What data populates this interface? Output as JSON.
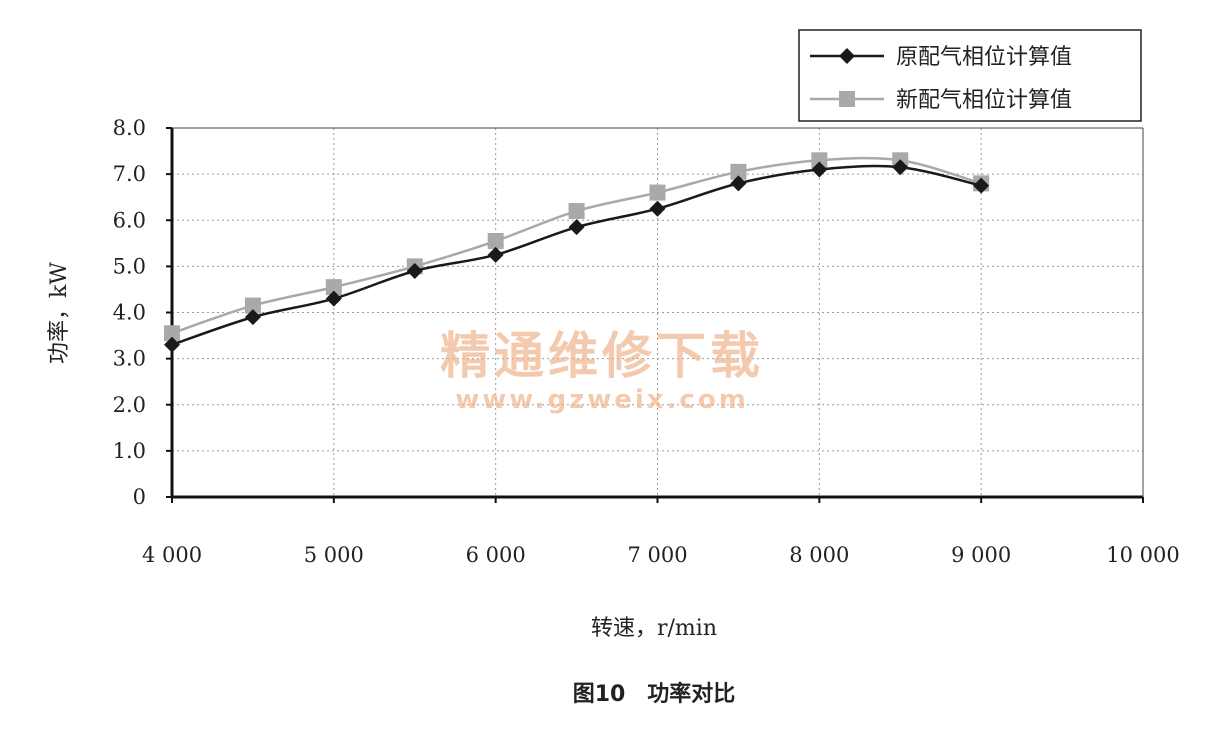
{
  "chart_data": {
    "type": "line",
    "xlabel": "转速，r/min",
    "ylabel": "功率，kW",
    "xlim": [
      4000,
      10000
    ],
    "ylim": [
      0,
      8
    ],
    "x_ticks": [
      4000,
      5000,
      6000,
      7000,
      8000,
      9000,
      10000
    ],
    "x_tick_labels": [
      "4 000",
      "5 000",
      "6 000",
      "7 000",
      "8 000",
      "9 000",
      "10 000"
    ],
    "y_ticks": [
      0,
      1,
      2,
      3,
      4,
      5,
      6,
      7,
      8
    ],
    "y_tick_labels": [
      "0",
      "1.0",
      "2.0",
      "3.0",
      "4.0",
      "5.0",
      "6.0",
      "7.0",
      "8.0"
    ],
    "grid": true,
    "legend_position": "top-right",
    "x": [
      4000,
      4500,
      5000,
      5500,
      6000,
      6500,
      7000,
      7500,
      8000,
      8500,
      9000
    ],
    "series": [
      {
        "name": "原配气相位计算值",
        "marker": "diamond",
        "color": "#1a1a1a",
        "values": [
          3.3,
          3.9,
          4.3,
          4.9,
          5.25,
          5.85,
          6.25,
          6.8,
          7.1,
          7.15,
          6.75
        ]
      },
      {
        "name": "新配气相位计算值",
        "marker": "square",
        "color": "#a9a9a9",
        "values": [
          3.55,
          4.15,
          4.55,
          5.0,
          5.55,
          6.2,
          6.6,
          7.05,
          7.3,
          7.3,
          6.8
        ]
      }
    ]
  },
  "caption": "图10　功率对比",
  "watermark": {
    "text": "精通维修下载",
    "url": "www.gzweix.com"
  }
}
